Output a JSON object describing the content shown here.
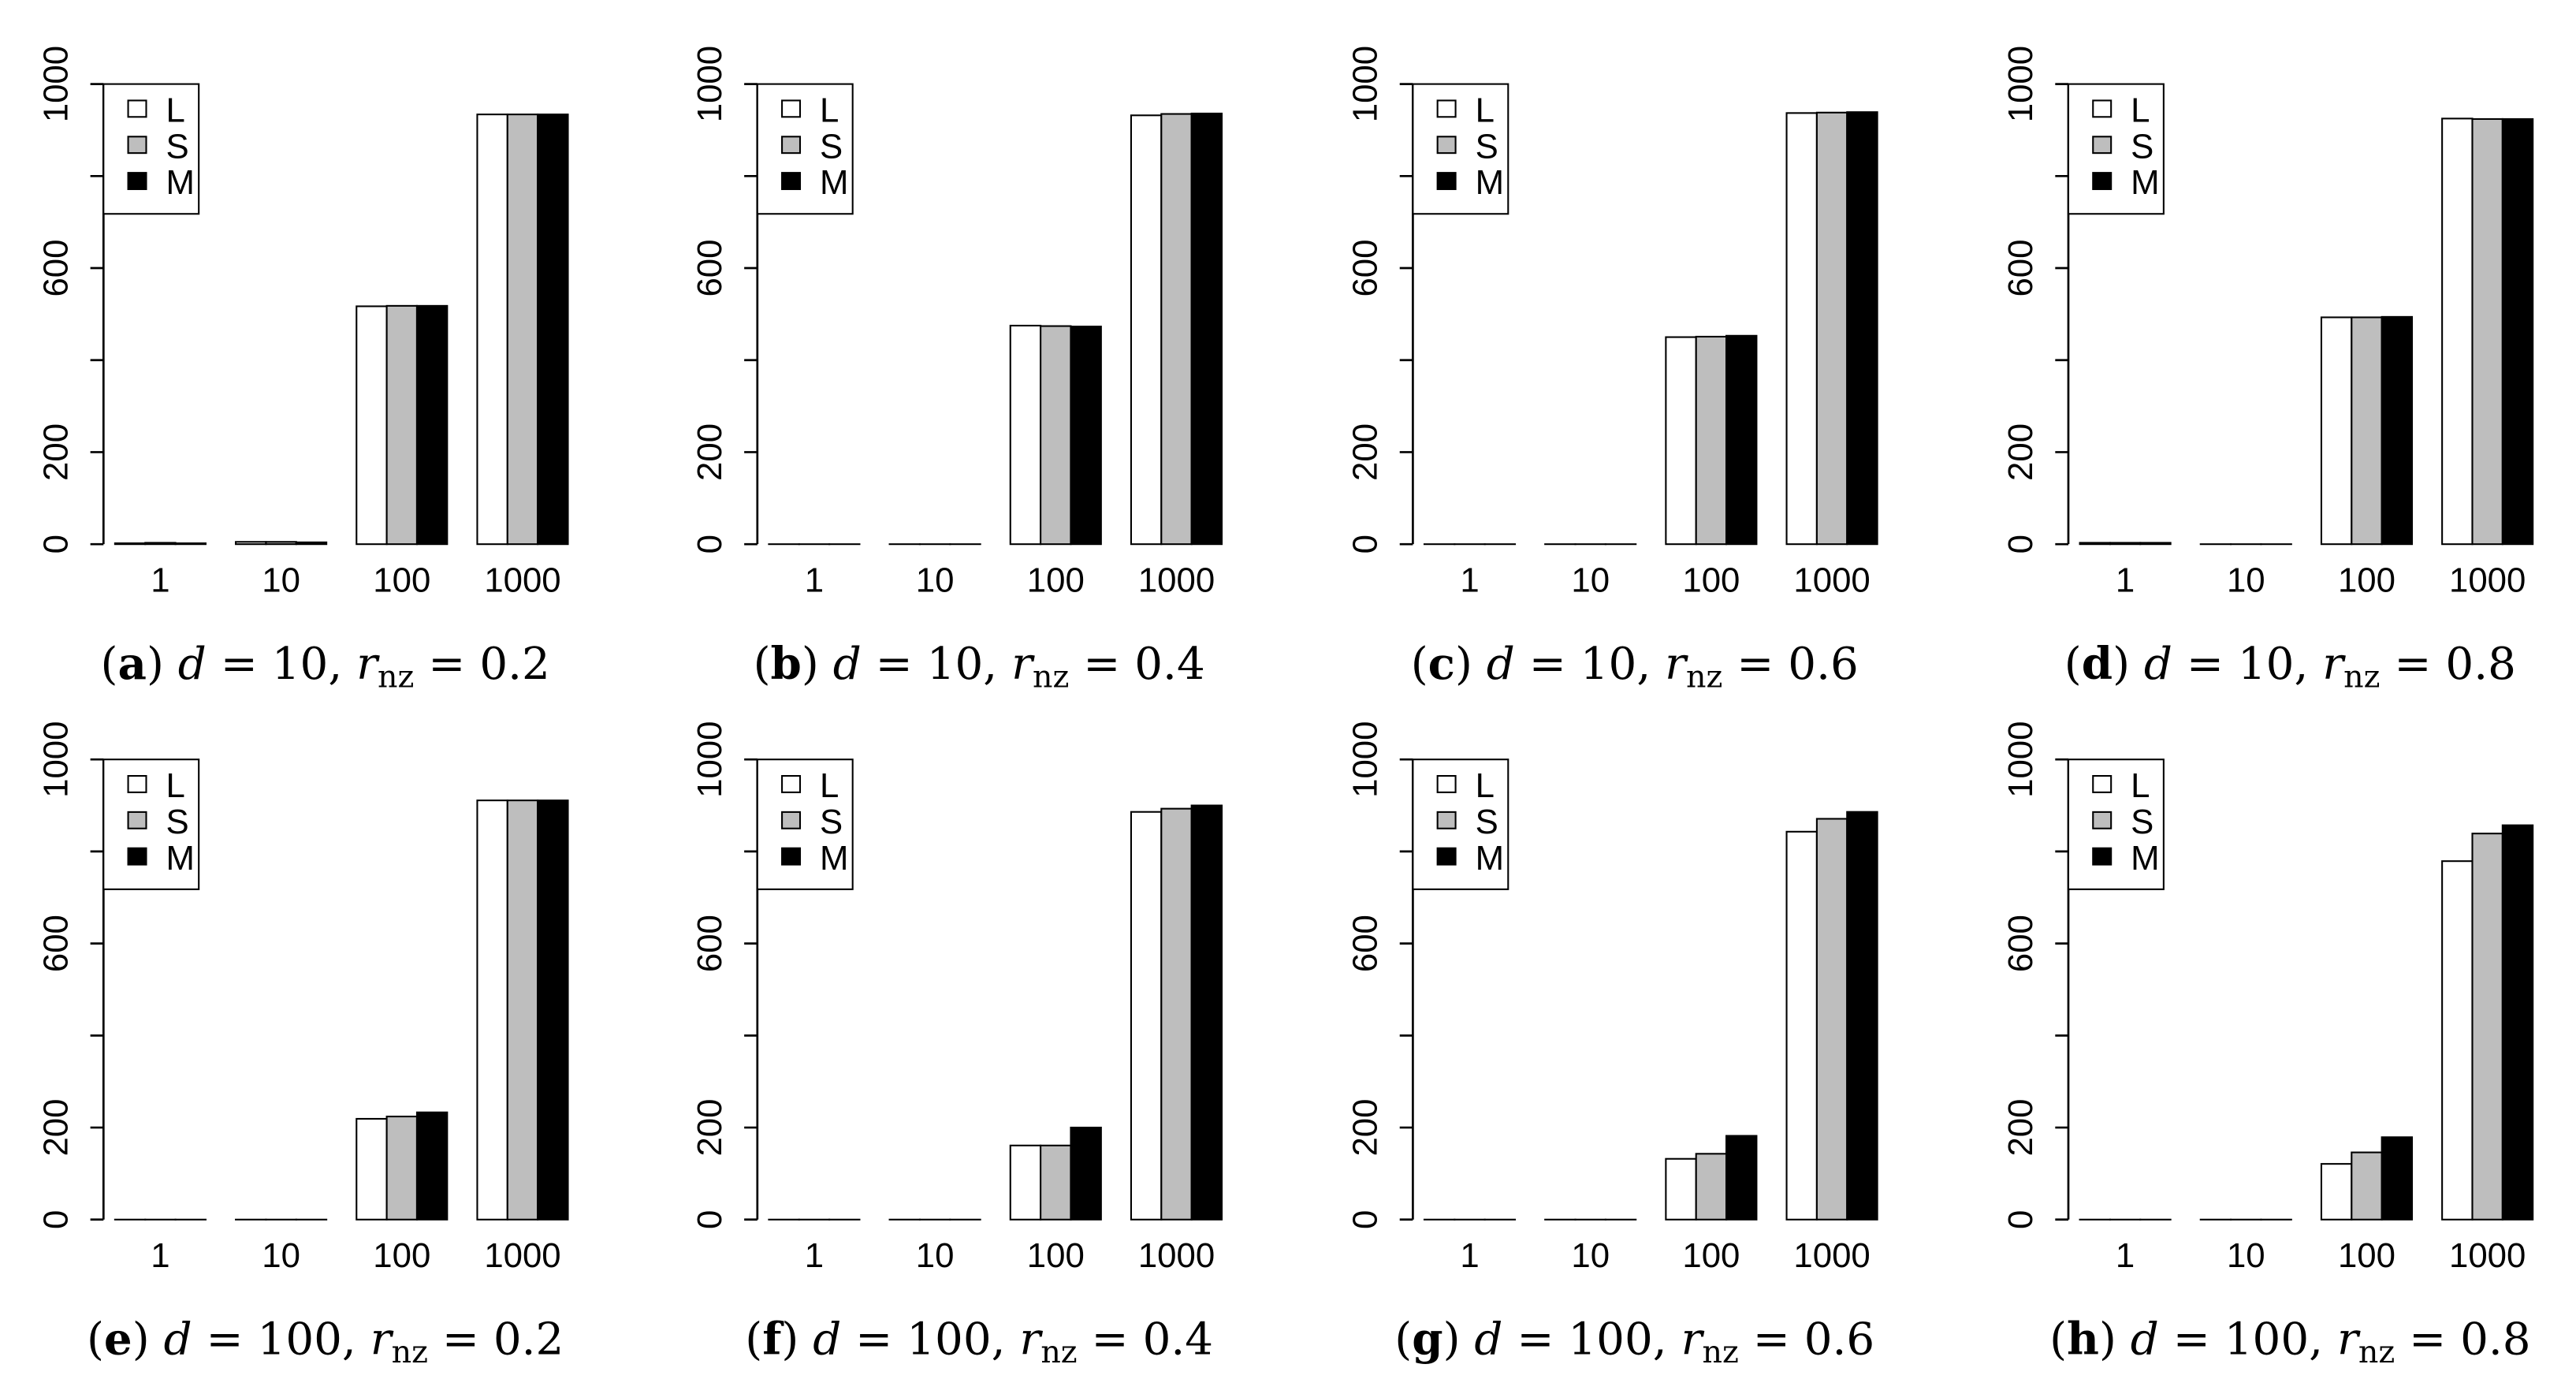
{
  "chart_data": [
    {
      "type": "bar",
      "panel": "a",
      "caption": {
        "d": "10",
        "rnz": "0.2"
      },
      "categories": [
        "1",
        "10",
        "100",
        "1000"
      ],
      "series": [
        {
          "name": "L",
          "values": [
            2,
            5,
            517,
            934
          ]
        },
        {
          "name": "S",
          "values": [
            3,
            5,
            518,
            934
          ]
        },
        {
          "name": "M",
          "values": [
            2,
            4,
            518,
            934
          ]
        }
      ]
    },
    {
      "type": "bar",
      "panel": "b",
      "caption": {
        "d": "10",
        "rnz": "0.4"
      },
      "categories": [
        "1",
        "10",
        "100",
        "1000"
      ],
      "series": [
        {
          "name": "L",
          "values": [
            0,
            0,
            475,
            932
          ]
        },
        {
          "name": "S",
          "values": [
            0,
            0,
            474,
            935
          ]
        },
        {
          "name": "M",
          "values": [
            0,
            0,
            473,
            936
          ]
        }
      ]
    },
    {
      "type": "bar",
      "panel": "c",
      "caption": {
        "d": "10",
        "rnz": "0.6"
      },
      "categories": [
        "1",
        "10",
        "100",
        "1000"
      ],
      "series": [
        {
          "name": "L",
          "values": [
            0,
            0,
            450,
            937
          ]
        },
        {
          "name": "S",
          "values": [
            0,
            0,
            451,
            938
          ]
        },
        {
          "name": "M",
          "values": [
            0,
            0,
            453,
            939
          ]
        }
      ]
    },
    {
      "type": "bar",
      "panel": "d",
      "caption": {
        "d": "10",
        "rnz": "0.8"
      },
      "categories": [
        "1",
        "10",
        "100",
        "1000"
      ],
      "series": [
        {
          "name": "L",
          "values": [
            3,
            0,
            493,
            925
          ]
        },
        {
          "name": "S",
          "values": [
            3,
            0,
            493,
            924
          ]
        },
        {
          "name": "M",
          "values": [
            3,
            0,
            494,
            924
          ]
        }
      ]
    },
    {
      "type": "bar",
      "panel": "e",
      "caption": {
        "d": "100",
        "rnz": "0.2"
      },
      "categories": [
        "1",
        "10",
        "100",
        "1000"
      ],
      "series": [
        {
          "name": "L",
          "values": [
            0,
            0,
            219,
            911
          ]
        },
        {
          "name": "S",
          "values": [
            0,
            0,
            224,
            911
          ]
        },
        {
          "name": "M",
          "values": [
            0,
            0,
            233,
            911
          ]
        }
      ]
    },
    {
      "type": "bar",
      "panel": "f",
      "caption": {
        "d": "100",
        "rnz": "0.4"
      },
      "categories": [
        "1",
        "10",
        "100",
        "1000"
      ],
      "series": [
        {
          "name": "L",
          "values": [
            0,
            0,
            161,
            886
          ]
        },
        {
          "name": "S",
          "values": [
            0,
            0,
            161,
            893
          ]
        },
        {
          "name": "M",
          "values": [
            0,
            0,
            200,
            900
          ]
        }
      ]
    },
    {
      "type": "bar",
      "panel": "g",
      "caption": {
        "d": "100",
        "rnz": "0.6"
      },
      "categories": [
        "1",
        "10",
        "100",
        "1000"
      ],
      "series": [
        {
          "name": "L",
          "values": [
            0,
            0,
            132,
            843
          ]
        },
        {
          "name": "S",
          "values": [
            0,
            0,
            143,
            871
          ]
        },
        {
          "name": "M",
          "values": [
            0,
            0,
            182,
            886
          ]
        }
      ]
    },
    {
      "type": "bar",
      "panel": "h",
      "caption": {
        "d": "100",
        "rnz": "0.8"
      },
      "categories": [
        "1",
        "10",
        "100",
        "1000"
      ],
      "series": [
        {
          "name": "L",
          "values": [
            0,
            0,
            121,
            779
          ]
        },
        {
          "name": "S",
          "values": [
            0,
            0,
            146,
            839
          ]
        },
        {
          "name": "M",
          "values": [
            0,
            0,
            179,
            857
          ]
        }
      ]
    }
  ],
  "shared": {
    "ylim": [
      0,
      1000
    ],
    "y_ticks": [
      0,
      200,
      400,
      600,
      800,
      1000
    ],
    "y_tick_labels": [
      "0",
      "200",
      "",
      "600",
      "",
      "1000"
    ],
    "legend": {
      "placement": "top-left",
      "entries": [
        "L",
        "S",
        "M"
      ]
    },
    "series_colors": {
      "L": "#ffffff",
      "S": "#bebebe",
      "M": "#000000"
    },
    "grid": false,
    "caption_symbols": {
      "d": "d",
      "r": "r",
      "sub": "nz"
    }
  }
}
